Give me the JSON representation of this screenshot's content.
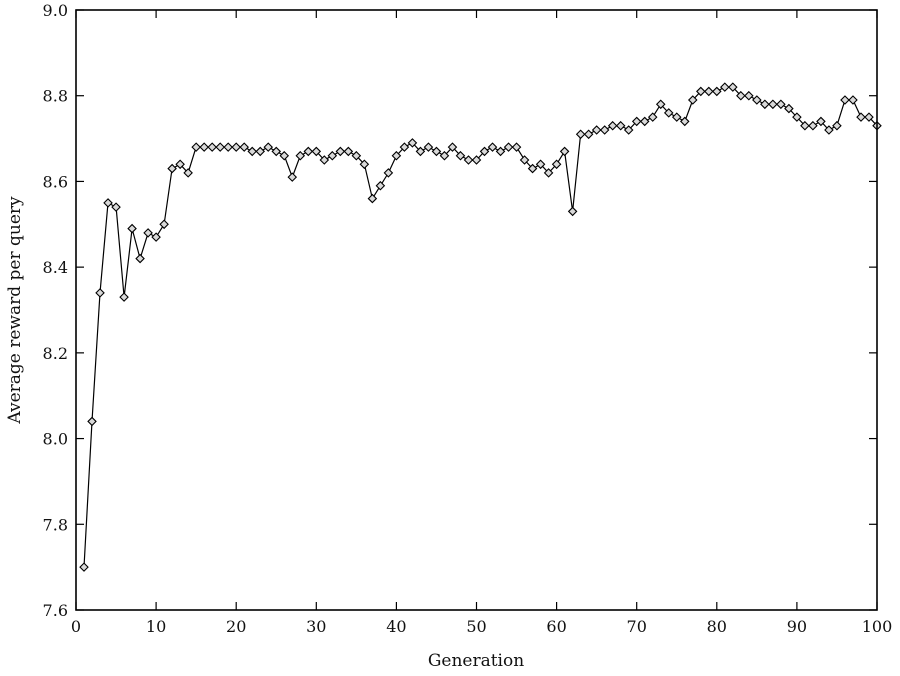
{
  "chart_data": {
    "type": "line",
    "title": "",
    "xlabel": "Generation",
    "ylabel": "Average reward per query",
    "xlim": [
      0,
      100
    ],
    "ylim": [
      7.6,
      9.0
    ],
    "xticks": [
      0,
      10,
      20,
      30,
      40,
      50,
      60,
      70,
      80,
      90,
      100
    ],
    "xtick_labels": [
      "0",
      "10",
      "20",
      "30",
      "40",
      "50",
      "60",
      "70",
      "80",
      "90",
      "100"
    ],
    "yticks": [
      7.6,
      7.8,
      8.0,
      8.2,
      8.4,
      8.6,
      8.8,
      9.0
    ],
    "ytick_labels": [
      "7.6",
      "7.8",
      "8.0",
      "8.2",
      "8.4",
      "8.6",
      "8.8",
      "9.0"
    ],
    "grid": false,
    "legend": "none",
    "marker": "diamond",
    "x": [
      1,
      2,
      3,
      4,
      5,
      6,
      7,
      8,
      9,
      10,
      11,
      12,
      13,
      14,
      15,
      16,
      17,
      18,
      19,
      20,
      21,
      22,
      23,
      24,
      25,
      26,
      27,
      28,
      29,
      30,
      31,
      32,
      33,
      34,
      35,
      36,
      37,
      38,
      39,
      40,
      41,
      42,
      43,
      44,
      45,
      46,
      47,
      48,
      49,
      50,
      51,
      52,
      53,
      54,
      55,
      56,
      57,
      58,
      59,
      60,
      61,
      62,
      63,
      64,
      65,
      66,
      67,
      68,
      69,
      70,
      71,
      72,
      73,
      74,
      75,
      76,
      77,
      78,
      79,
      80,
      81,
      82,
      83,
      84,
      85,
      86,
      87,
      88,
      89,
      90,
      91,
      92,
      93,
      94,
      95,
      96,
      97,
      98,
      99,
      100
    ],
    "values": [
      7.7,
      8.04,
      8.34,
      8.55,
      8.54,
      8.33,
      8.49,
      8.42,
      8.48,
      8.47,
      8.5,
      8.63,
      8.64,
      8.62,
      8.68,
      8.68,
      8.68,
      8.68,
      8.68,
      8.68,
      8.68,
      8.67,
      8.67,
      8.68,
      8.67,
      8.66,
      8.61,
      8.66,
      8.67,
      8.67,
      8.65,
      8.66,
      8.67,
      8.67,
      8.66,
      8.64,
      8.56,
      8.59,
      8.62,
      8.66,
      8.68,
      8.69,
      8.67,
      8.68,
      8.67,
      8.66,
      8.68,
      8.66,
      8.65,
      8.65,
      8.67,
      8.68,
      8.67,
      8.68,
      8.68,
      8.65,
      8.63,
      8.64,
      8.62,
      8.64,
      8.67,
      8.53,
      8.71,
      8.71,
      8.72,
      8.72,
      8.73,
      8.73,
      8.72,
      8.74,
      8.74,
      8.75,
      8.78,
      8.76,
      8.75,
      8.74,
      8.79,
      8.81,
      8.81,
      8.81,
      8.82,
      8.82,
      8.8,
      8.8,
      8.79,
      8.78,
      8.78,
      8.78,
      8.77,
      8.75,
      8.73,
      8.73,
      8.74,
      8.72,
      8.73,
      8.79,
      8.79,
      8.75,
      8.75,
      8.73
    ]
  }
}
